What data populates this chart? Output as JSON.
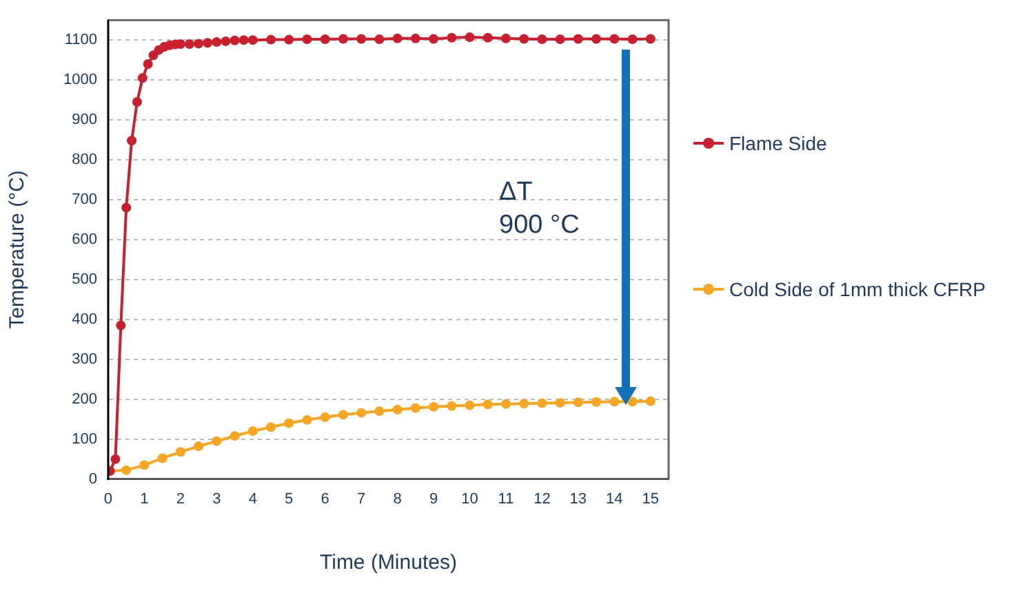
{
  "chart_data": {
    "type": "line",
    "xlabel": "Time (Minutes)",
    "ylabel": "Temperature (°C)",
    "xlim": [
      0,
      15.5
    ],
    "xticks": [
      0,
      1,
      2,
      3,
      4,
      5,
      6,
      7,
      8,
      9,
      10,
      11,
      12,
      13,
      14,
      15
    ],
    "ylim": [
      0,
      1150
    ],
    "yticks": [
      0,
      100,
      200,
      300,
      400,
      500,
      600,
      700,
      800,
      900,
      1000,
      1100
    ],
    "grid": "y",
    "legend": "right",
    "marker": "circle",
    "line_style": "solid",
    "annotations": [
      "ΔT\n900 °C"
    ],
    "series": [
      {
        "name": "Flame Side",
        "color": "#c8202f",
        "x": [
          0.05,
          0.2,
          0.35,
          0.5,
          0.65,
          0.8,
          0.95,
          1.1,
          1.25,
          1.4,
          1.55,
          1.7,
          1.85,
          2,
          2.25,
          2.5,
          2.75,
          3,
          3.25,
          3.5,
          3.75,
          4,
          4.5,
          5,
          5.5,
          6,
          6.5,
          7,
          7.5,
          8,
          8.5,
          9,
          9.5,
          10,
          10.5,
          11,
          11.5,
          12,
          12.5,
          13,
          13.5,
          14,
          14.5,
          15
        ],
        "values": [
          20,
          50,
          385,
          680,
          848,
          945,
          1005,
          1040,
          1062,
          1075,
          1083,
          1087,
          1089,
          1090,
          1090,
          1091,
          1093,
          1095,
          1097,
          1099,
          1100,
          1100,
          1101,
          1101,
          1102,
          1102,
          1103,
          1103,
          1102,
          1104,
          1104,
          1103,
          1106,
          1107,
          1106,
          1104,
          1103,
          1102,
          1102,
          1103,
          1103,
          1103,
          1102,
          1103
        ]
      },
      {
        "name": "Cold Side of 1mm thick CFRP",
        "color": "#f5a623",
        "x": [
          0,
          0.5,
          1,
          1.5,
          2,
          2.5,
          3,
          3.5,
          4,
          4.5,
          5,
          5.5,
          6,
          6.5,
          7,
          7.5,
          8,
          8.5,
          9,
          9.5,
          10,
          10.5,
          11,
          11.5,
          12,
          12.5,
          13,
          13.5,
          14,
          14.5,
          15
        ],
        "values": [
          20,
          22,
          35,
          52,
          68,
          82,
          95,
          108,
          120,
          130,
          140,
          148,
          155,
          161,
          166,
          170,
          174,
          178,
          181,
          183,
          185,
          187,
          188,
          189,
          190,
          191,
          192,
          193,
          194,
          194,
          195
        ]
      }
    ]
  }
}
